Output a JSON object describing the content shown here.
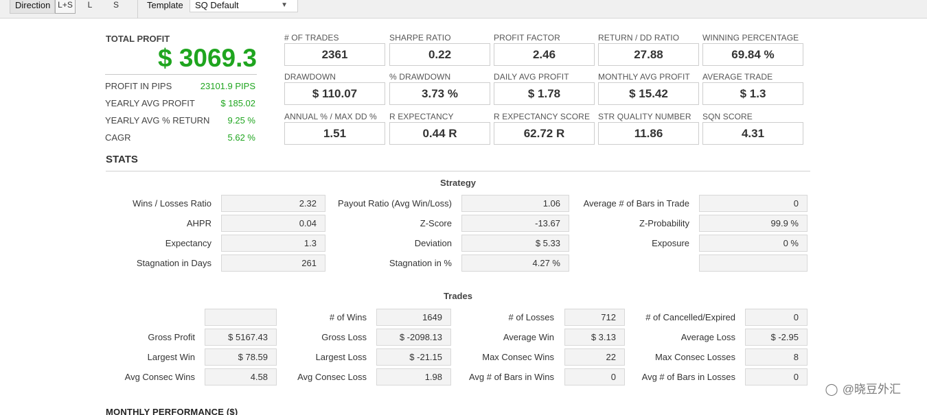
{
  "toolbar": {
    "direction_label": "Direction",
    "direction_options": [
      "L+S",
      "L",
      "S"
    ],
    "direction_selected": "L+S",
    "template_label": "Template",
    "template_value": "SQ Default"
  },
  "summary": {
    "total_profit_label": "TOTAL PROFIT",
    "total_profit_value": "$ 3069.3",
    "rows": [
      {
        "label": "PROFIT IN PIPS",
        "value": "23101.9 PIPS"
      },
      {
        "label": "YEARLY AVG PROFIT",
        "value": "$ 185.02"
      },
      {
        "label": "YEARLY AVG % RETURN",
        "value": "9.25 %"
      },
      {
        "label": "CAGR",
        "value": "5.62 %"
      }
    ]
  },
  "metrics": [
    {
      "label": "# OF TRADES",
      "value": "2361"
    },
    {
      "label": "SHARPE RATIO",
      "value": "0.22"
    },
    {
      "label": "PROFIT FACTOR",
      "value": "2.46"
    },
    {
      "label": "RETURN / DD RATIO",
      "value": "27.88"
    },
    {
      "label": "WINNING PERCENTAGE",
      "value": "69.84 %"
    },
    {
      "label": "DRAWDOWN",
      "value": "$ 110.07"
    },
    {
      "label": "% DRAWDOWN",
      "value": "3.73 %"
    },
    {
      "label": "DAILY AVG PROFIT",
      "value": "$ 1.78"
    },
    {
      "label": "MONTHLY AVG PROFIT",
      "value": "$ 15.42"
    },
    {
      "label": "AVERAGE TRADE",
      "value": "$ 1.3"
    },
    {
      "label": "ANNUAL % / MAX DD %",
      "value": "1.51"
    },
    {
      "label": "R EXPECTANCY",
      "value": "0.44 R"
    },
    {
      "label": "R EXPECTANCY SCORE",
      "value": "62.72 R"
    },
    {
      "label": "STR QUALITY NUMBER",
      "value": "11.86"
    },
    {
      "label": "SQN SCORE",
      "value": "4.31"
    }
  ],
  "stats_title": "STATS",
  "strategy": {
    "title": "Strategy",
    "rows": [
      [
        {
          "label": "Wins / Losses Ratio",
          "value": "2.32"
        },
        {
          "label": "Payout Ratio (Avg Win/Loss)",
          "value": "1.06"
        },
        {
          "label": "Average # of Bars in Trade",
          "value": "0"
        }
      ],
      [
        {
          "label": "AHPR",
          "value": "0.04"
        },
        {
          "label": "Z-Score",
          "value": "-13.67"
        },
        {
          "label": "Z-Probability",
          "value": "99.9 %"
        }
      ],
      [
        {
          "label": "Expectancy",
          "value": "1.3"
        },
        {
          "label": "Deviation",
          "value": "$ 5.33"
        },
        {
          "label": "Exposure",
          "value": "0 %"
        }
      ],
      [
        {
          "label": "Stagnation in Days",
          "value": "261"
        },
        {
          "label": "Stagnation in %",
          "value": "4.27 %"
        },
        {
          "label": "",
          "value": ""
        }
      ]
    ]
  },
  "trades": {
    "title": "Trades",
    "rows": [
      [
        {
          "label": "",
          "value": ""
        },
        {
          "label": "# of Wins",
          "value": "1649"
        },
        {
          "label": "# of Losses",
          "value": "712"
        },
        {
          "label": "# of Cancelled/Expired",
          "value": "0"
        }
      ],
      [
        {
          "label": "Gross Profit",
          "value": "$ 5167.43"
        },
        {
          "label": "Gross Loss",
          "value": "$ -2098.13"
        },
        {
          "label": "Average Win",
          "value": "$ 3.13"
        },
        {
          "label": "Average Loss",
          "value": "$ -2.95"
        }
      ],
      [
        {
          "label": "Largest Win",
          "value": "$ 78.59"
        },
        {
          "label": "Largest Loss",
          "value": "$ -21.15"
        },
        {
          "label": "Max Consec Wins",
          "value": "22"
        },
        {
          "label": "Max Consec Losses",
          "value": "8"
        }
      ],
      [
        {
          "label": "Avg Consec Wins",
          "value": "4.58"
        },
        {
          "label": "Avg Consec Loss",
          "value": "1.98"
        },
        {
          "label": "Avg # of Bars in Wins",
          "value": "0"
        },
        {
          "label": "Avg # of Bars in Losses",
          "value": "0"
        }
      ]
    ]
  },
  "monthly_title": "MONTHLY PERFORMANCE ($)",
  "watermark": "@晓豆外汇",
  "colors": {
    "profit_green": "#1fa51f"
  }
}
